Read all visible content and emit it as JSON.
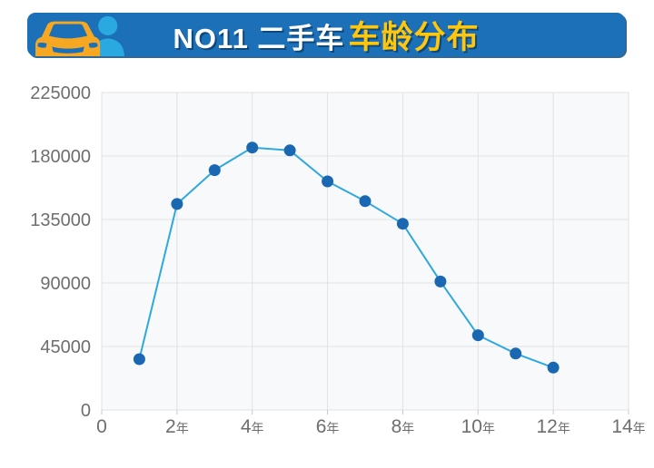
{
  "header": {
    "title_prefix": "NO11 二手车",
    "title_highlight": "车龄分布",
    "banner_color": "#1C70B7",
    "highlight_color": "#FFC60B",
    "icon": "car-user-icon",
    "icon_car_color": "#F7A823",
    "icon_person_color": "#2AA9E1"
  },
  "chart_data": {
    "type": "line",
    "title": "NO11 二手车车龄分布",
    "x": [
      1,
      2,
      3,
      4,
      5,
      6,
      7,
      8,
      9,
      10,
      11,
      12
    ],
    "values": [
      36000,
      146000,
      170000,
      186000,
      184000,
      162000,
      148000,
      132000,
      91000,
      53000,
      40000,
      30000
    ],
    "xlabel": "",
    "ylabel": "",
    "xlim": [
      0,
      14
    ],
    "ylim": [
      0,
      225000
    ],
    "x_ticks": [
      0,
      2,
      4,
      6,
      8,
      10,
      12,
      14
    ],
    "x_tick_labels": [
      "0",
      "2年",
      "4年",
      "6年",
      "8年",
      "10年",
      "12年",
      "14年"
    ],
    "y_ticks": [
      0,
      45000,
      90000,
      135000,
      180000,
      225000
    ],
    "y_tick_labels": [
      "0",
      "45000",
      "90000",
      "135000",
      "180000",
      "225000"
    ],
    "grid": true,
    "legend_position": "none",
    "line_color": "#2FA8DF",
    "point_color": "#1A67B2",
    "plot_bg": "#F8F9FA",
    "grid_color": "#E2E2E2",
    "tick_color": "#6E6E6E",
    "tick_mark_color": "#C8C8C8"
  }
}
